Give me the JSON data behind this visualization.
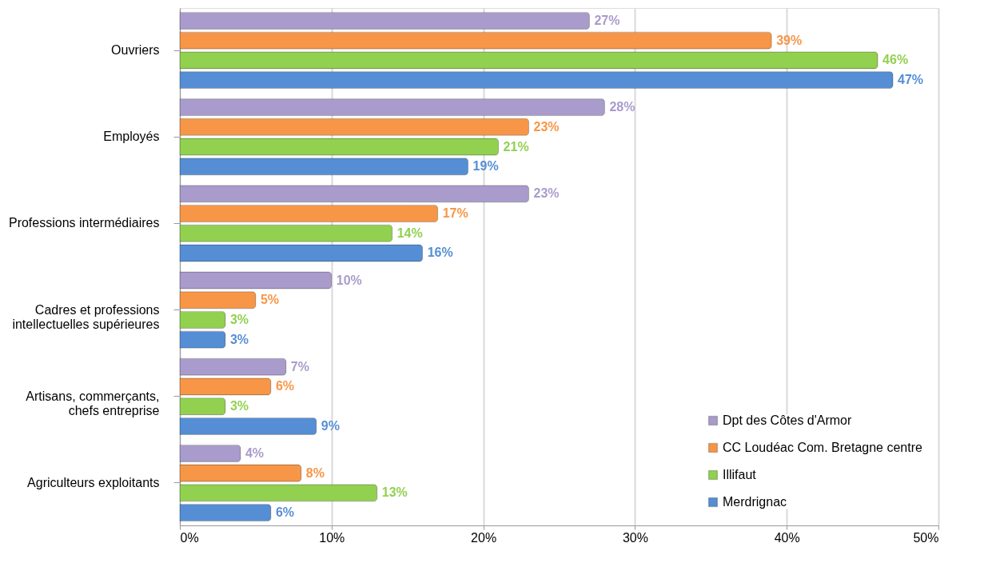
{
  "chart_data": {
    "type": "bar",
    "orientation": "horizontal",
    "categories": [
      "Ouvriers",
      "Employés",
      "Professions intermédiaires",
      "Cadres et professions intellectuelles supérieures",
      "Artisans, commerçants, chefs entreprise",
      "Agriculteurs exploitants"
    ],
    "series": [
      {
        "name": "Dpt des Côtes d'Armor",
        "color": "#a99bcb",
        "values": [
          27,
          28,
          23,
          10,
          7,
          4
        ],
        "value_labels": [
          "27%",
          "28%",
          "23%",
          "10%",
          "7%",
          "4%"
        ]
      },
      {
        "name": "CC Loudéac Com. Bretagne centre",
        "color": "#f79646",
        "values": [
          39,
          23,
          17,
          5,
          6,
          8
        ],
        "value_labels": [
          "39%",
          "23%",
          "17%",
          "5%",
          "6%",
          "8%"
        ]
      },
      {
        "name": "Illifaut",
        "color": "#92d050",
        "values": [
          46,
          21,
          14,
          3,
          3,
          13
        ],
        "value_labels": [
          "46%",
          "21%",
          "14%",
          "3%",
          "3%",
          "13%"
        ]
      },
      {
        "name": "Merdrignac",
        "color": "#558ed5",
        "values": [
          47,
          19,
          16,
          3,
          9,
          6
        ],
        "value_labels": [
          "47%",
          "19%",
          "16%",
          "3%",
          "9%",
          "6%"
        ]
      }
    ],
    "xlim": [
      0,
      50
    ],
    "xticks": [
      {
        "value": 0,
        "label": "0%"
      },
      {
        "value": 10,
        "label": "10%"
      },
      {
        "value": 20,
        "label": "20%"
      },
      {
        "value": 30,
        "label": "30%"
      },
      {
        "value": 40,
        "label": "40%"
      },
      {
        "value": 50,
        "label": "50%"
      }
    ],
    "grid": "x",
    "legend": "bottom right"
  }
}
